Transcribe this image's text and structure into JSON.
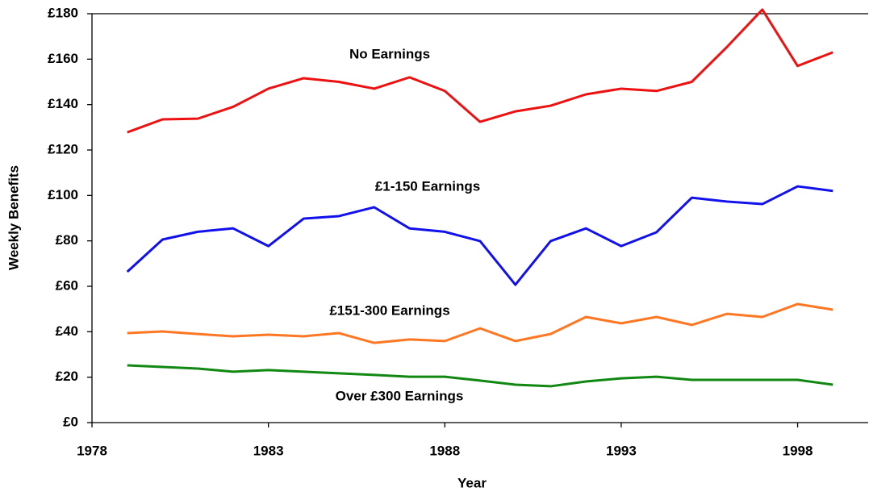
{
  "chart_data": {
    "type": "line",
    "x_label": "Year",
    "y_label": "Weekly Benefits",
    "x": [
      1979,
      1980,
      1981,
      1982,
      1983,
      1984,
      1985,
      1986,
      1987,
      1988,
      1989,
      1990,
      1991,
      1992,
      1993,
      1994,
      1995,
      1996,
      1997,
      1998,
      1999
    ],
    "series": [
      {
        "name": "No Earnings",
        "color": "#ee1111",
        "values": [
          127.8,
          133.5,
          133.8,
          139,
          147,
          151.6,
          150,
          147,
          152,
          146,
          132.4,
          137,
          139.5,
          144.5,
          147,
          146,
          150,
          165.4,
          181.8,
          157,
          163
        ]
      },
      {
        "name": "£1-150 Earnings",
        "color": "#1111ee",
        "values": [
          66.4,
          80.6,
          84,
          85.5,
          77.7,
          89.8,
          90.9,
          94.8,
          85.5,
          84,
          79.9,
          60.7,
          79.9,
          85.5,
          77.7,
          83.8,
          99,
          97.3,
          96.2,
          104,
          102
        ]
      },
      {
        "name": "£151-300 Earnings",
        "color": "#ff7722",
        "values": [
          39.4,
          40.1,
          39,
          38,
          38.7,
          38,
          39.4,
          35.1,
          36.6,
          35.9,
          41.5,
          35.9,
          39,
          46.5,
          43.7,
          46.5,
          43,
          47.9,
          46.5,
          52.2,
          49.7
        ]
      },
      {
        "name": "Over £300 Earnings",
        "color": "#118811",
        "values": [
          25.2,
          24.5,
          23.8,
          22.4,
          23.1,
          22.4,
          21.7,
          21,
          20.2,
          20.2,
          18.5,
          16.7,
          16,
          18.1,
          19.5,
          20.2,
          18.8,
          18.8,
          18.8,
          18.8,
          16.7
        ]
      }
    ],
    "xlim": [
      1978,
      2000
    ],
    "xticks": [
      1978,
      1983,
      1988,
      1993,
      1998
    ],
    "ylim": [
      0,
      180
    ],
    "yticks": [
      {
        "value": 0,
        "label": "£0"
      },
      {
        "value": 20,
        "label": "£20"
      },
      {
        "value": 40,
        "label": "£40"
      },
      {
        "value": 60,
        "label": "£60"
      },
      {
        "value": 80,
        "label": "£80"
      },
      {
        "value": 100,
        "label": "£100"
      },
      {
        "value": 120,
        "label": "£120"
      },
      {
        "value": 140,
        "label": "£140"
      },
      {
        "value": 160,
        "label": "£160"
      },
      {
        "value": 180,
        "label": "£180"
      }
    ]
  }
}
